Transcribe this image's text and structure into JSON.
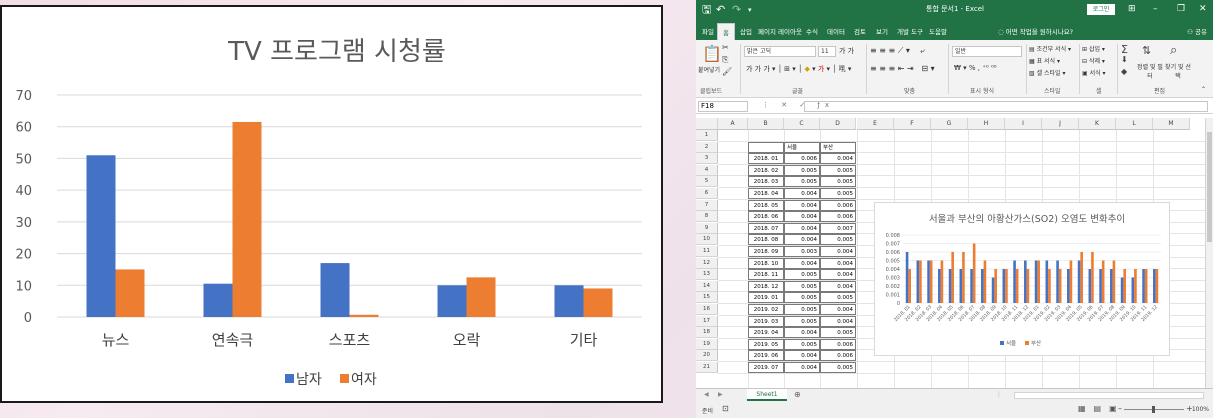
{
  "left_chart": {
    "chart_data": {
      "type": "bar",
      "title": "TV 프로그램 시청률",
      "categories": [
        "뉴스",
        "연속극",
        "스포츠",
        "오락",
        "기타"
      ],
      "series": [
        {
          "name": "남자",
          "values": [
            51,
            10.5,
            17,
            10,
            10
          ],
          "color": "#4472C4"
        },
        {
          "name": "여자",
          "values": [
            15,
            61.5,
            0.7,
            12.5,
            9
          ],
          "color": "#ED7D31"
        }
      ],
      "ylim": [
        0,
        70
      ],
      "yticks": [
        "0",
        "10",
        "20",
        "30",
        "40",
        "50",
        "60",
        "70"
      ],
      "grid": true,
      "legend": "bottom"
    }
  },
  "excel": {
    "title": "통합 문서1 - Excel",
    "login": "로그인",
    "window_controls": [
      "⊞",
      "–",
      "❐",
      "✕"
    ],
    "tabs": [
      "파일",
      "홈",
      "삽입",
      "페이지 레이아웃",
      "수식",
      "데이터",
      "검토",
      "보기",
      "개발 도구",
      "도움말"
    ],
    "active_tab": "홈",
    "tell_me": "어떤 작업을 원하시나요?",
    "share": "공유",
    "ribbon": {
      "paste": "붙여넣기",
      "font_name": "맑은 고딕",
      "font_size": "11",
      "number_format": "일반",
      "conditional_format": "조건부 서식",
      "table_format": "표 서식",
      "cell_style": "셀 스타일",
      "insert": "삽입",
      "delete": "삭제",
      "format": "서식",
      "sort_filter": "정렬 및 필터",
      "find_select": "찾기 및 선택",
      "groups": [
        "클립보드",
        "글꼴",
        "맞춤",
        "표시 형식",
        "스타일",
        "셀",
        "편집"
      ]
    },
    "name_box": "F18",
    "columns": [
      "A",
      "B",
      "C",
      "D",
      "E",
      "F",
      "G",
      "H",
      "I",
      "J",
      "K",
      "L",
      "M"
    ],
    "rows": [
      "1",
      "2",
      "3",
      "4",
      "5",
      "6",
      "7",
      "8",
      "9",
      "10",
      "11",
      "12",
      "13",
      "14",
      "15",
      "16",
      "17",
      "18",
      "19",
      "20",
      "21"
    ],
    "table": {
      "headers": [
        "",
        "서울",
        "부산"
      ],
      "rows": [
        [
          "2018. 01",
          "0.006",
          "0.004"
        ],
        [
          "2018. 02",
          "0.005",
          "0.005"
        ],
        [
          "2018. 03",
          "0.005",
          "0.005"
        ],
        [
          "2018. 04",
          "0.004",
          "0.005"
        ],
        [
          "2018. 05",
          "0.004",
          "0.006"
        ],
        [
          "2018. 06",
          "0.004",
          "0.006"
        ],
        [
          "2018. 07",
          "0.004",
          "0.007"
        ],
        [
          "2018. 08",
          "0.004",
          "0.005"
        ],
        [
          "2018. 09",
          "0.003",
          "0.004"
        ],
        [
          "2018. 10",
          "0.004",
          "0.004"
        ],
        [
          "2018. 11",
          "0.005",
          "0.004"
        ],
        [
          "2018. 12",
          "0.005",
          "0.004"
        ],
        [
          "2019. 01",
          "0.005",
          "0.005"
        ],
        [
          "2019. 02",
          "0.005",
          "0.004"
        ],
        [
          "2019. 03",
          "0.005",
          "0.004"
        ],
        [
          "2019. 04",
          "0.004",
          "0.005"
        ],
        [
          "2019. 05",
          "0.005",
          "0.006"
        ],
        [
          "2019. 06",
          "0.004",
          "0.006"
        ],
        [
          "2019. 07",
          "0.004",
          "0.005"
        ]
      ]
    },
    "chart_data": {
      "type": "bar",
      "title": "서울과 부산의 아황산가스(SO2) 오염도 변화추이",
      "categories": [
        "2018. 01",
        "2018. 02",
        "2018. 03",
        "2018. 04",
        "2018. 05",
        "2018. 06",
        "2018. 07",
        "2018. 08",
        "2018. 09",
        "2018. 10",
        "2018. 11",
        "2018. 12",
        "2019. 01",
        "2019. 02",
        "2019. 03",
        "2019. 04",
        "2019. 05",
        "2019. 06",
        "2019. 07",
        "2019. 08",
        "2019. 09",
        "2019. 10",
        "2019. 11",
        "2019. 12"
      ],
      "series": [
        {
          "name": "서울",
          "values": [
            0.006,
            0.005,
            0.005,
            0.004,
            0.004,
            0.004,
            0.004,
            0.004,
            0.003,
            0.004,
            0.005,
            0.005,
            0.005,
            0.005,
            0.005,
            0.004,
            0.005,
            0.004,
            0.004,
            0.004,
            0.003,
            0.003,
            0.004,
            0.004
          ],
          "color": "#4472C4"
        },
        {
          "name": "부산",
          "values": [
            0.004,
            0.005,
            0.005,
            0.005,
            0.006,
            0.006,
            0.007,
            0.005,
            0.004,
            0.004,
            0.004,
            0.004,
            0.005,
            0.004,
            0.004,
            0.005,
            0.006,
            0.006,
            0.005,
            0.005,
            0.004,
            0.004,
            0.004,
            0.004
          ],
          "color": "#ED7D31"
        }
      ],
      "ylim": [
        0,
        0.008
      ],
      "yticks": [
        "0",
        "0.001",
        "0.002",
        "0.003",
        "0.004",
        "0.005",
        "0.006",
        "0.007",
        "0.008"
      ],
      "grid": true,
      "legend": "bottom"
    },
    "sheet_tab": "Sheet1",
    "status": "준비",
    "zoom": "100%"
  }
}
